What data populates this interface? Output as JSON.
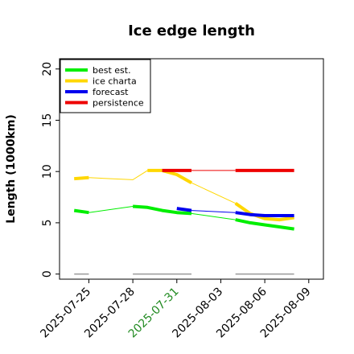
{
  "chart_data": {
    "type": "line",
    "title": "Ice edge length",
    "xlabel": "",
    "ylabel": "Length (1000km)",
    "ylim": [
      -0.5,
      21
    ],
    "yticks": [
      0,
      5,
      10,
      15,
      20
    ],
    "xlim": [
      "2025-07-23",
      "2025-08-10"
    ],
    "xticks": [
      {
        "date": "2025-07-25",
        "label": "2025-07-25",
        "color": "#000000"
      },
      {
        "date": "2025-07-28",
        "label": "2025-07-28",
        "color": "#000000"
      },
      {
        "date": "2025-07-31",
        "label": "2025-07-31",
        "color": "#228B22"
      },
      {
        "date": "2025-08-03",
        "label": "2025-08-03",
        "color": "#000000"
      },
      {
        "date": "2025-08-06",
        "label": "2025-08-06",
        "color": "#000000"
      },
      {
        "date": "2025-08-09",
        "label": "2025-08-09",
        "color": "#000000"
      }
    ],
    "grid": false,
    "legend_position": "top-left",
    "series": [
      {
        "name": "best est.",
        "color": "#00ee00",
        "thick_segments": [
          [
            [
              "2025-07-24",
              6.2
            ],
            [
              "2025-07-25",
              6.0
            ]
          ],
          [
            [
              "2025-07-28",
              6.6
            ],
            [
              "2025-07-29",
              6.5
            ],
            [
              "2025-07-30",
              6.2
            ],
            [
              "2025-07-31",
              6.0
            ],
            [
              "2025-08-01",
              5.9
            ]
          ],
          [
            [
              "2025-08-04",
              5.3
            ],
            [
              "2025-08-05",
              5.0
            ],
            [
              "2025-08-06",
              4.8
            ],
            [
              "2025-08-07",
              4.6
            ],
            [
              "2025-08-08",
              4.4
            ]
          ]
        ],
        "thin_links": [
          [
            [
              "2025-07-25",
              6.0
            ],
            [
              "2025-07-28",
              6.6
            ]
          ],
          [
            [
              "2025-08-01",
              5.9
            ],
            [
              "2025-08-04",
              5.3
            ]
          ]
        ]
      },
      {
        "name": "ice charta",
        "color": "#ffd700",
        "thick_segments": [
          [
            [
              "2025-07-24",
              9.3
            ],
            [
              "2025-07-25",
              9.4
            ]
          ],
          [
            [
              "2025-07-29",
              10.1
            ],
            [
              "2025-07-30",
              10.1
            ],
            [
              "2025-07-31",
              9.7
            ],
            [
              "2025-08-01",
              8.9
            ]
          ],
          [
            [
              "2025-08-04",
              6.9
            ],
            [
              "2025-08-05",
              5.9
            ],
            [
              "2025-08-06",
              5.4
            ],
            [
              "2025-08-07",
              5.3
            ],
            [
              "2025-08-08",
              5.5
            ]
          ]
        ],
        "thin_links": [
          [
            [
              "2025-07-25",
              9.4
            ],
            [
              "2025-07-28",
              9.2
            ],
            [
              "2025-07-29",
              10.1
            ]
          ],
          [
            [
              "2025-08-01",
              8.9
            ],
            [
              "2025-08-04",
              6.9
            ]
          ]
        ]
      },
      {
        "name": "forecast",
        "color": "#0000ee",
        "thick_segments": [
          [
            [
              "2025-07-31",
              6.4
            ],
            [
              "2025-08-01",
              6.2
            ]
          ],
          [
            [
              "2025-08-04",
              6.0
            ],
            [
              "2025-08-05",
              5.8
            ],
            [
              "2025-08-06",
              5.7
            ],
            [
              "2025-08-07",
              5.7
            ],
            [
              "2025-08-08",
              5.7
            ]
          ]
        ],
        "thin_links": [
          [
            [
              "2025-08-01",
              6.2
            ],
            [
              "2025-08-04",
              6.0
            ]
          ]
        ]
      },
      {
        "name": "persistence",
        "color": "#ee0000",
        "thick_segments": [
          [
            [
              "2025-07-30",
              10.1
            ],
            [
              "2025-08-01",
              10.1
            ]
          ],
          [
            [
              "2025-08-04",
              10.1
            ],
            [
              "2025-08-08",
              10.1
            ]
          ]
        ],
        "thin_links": [
          [
            [
              "2025-08-01",
              10.1
            ],
            [
              "2025-08-04",
              10.1
            ]
          ]
        ]
      }
    ],
    "baseline_segments": {
      "color": "#999999",
      "y": 0,
      "segments": [
        [
          "2025-07-24",
          "2025-07-25"
        ],
        [
          "2025-07-28",
          "2025-08-01"
        ],
        [
          "2025-08-04",
          "2025-08-08"
        ]
      ]
    }
  }
}
